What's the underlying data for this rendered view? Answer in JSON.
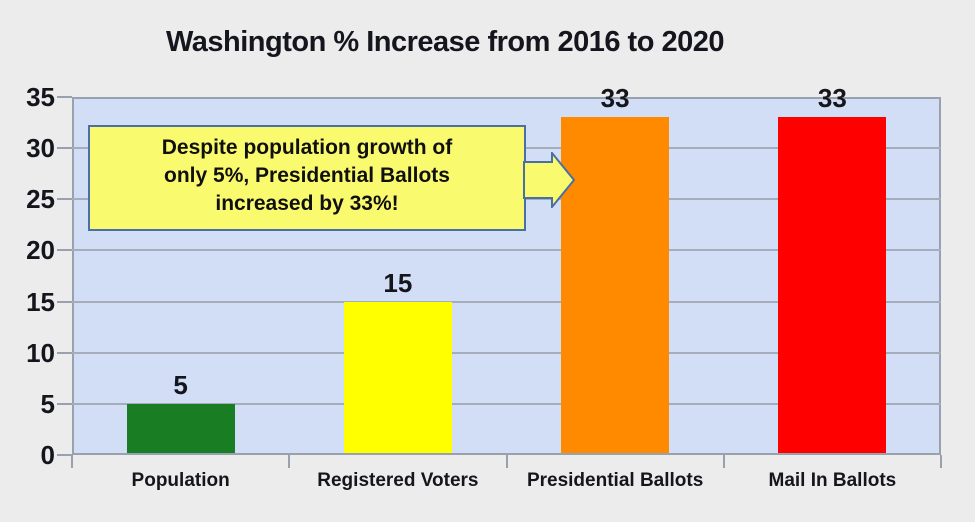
{
  "page": {
    "background": "#ececec"
  },
  "chart_data": {
    "type": "bar",
    "title": "Washington % Increase from 2016 to 2020",
    "categories": [
      "Population",
      "Registered Voters",
      "Presidential Ballots",
      "Mail In Ballots"
    ],
    "values": [
      5,
      15,
      33,
      33
    ],
    "data_labels": [
      "5",
      "15",
      "33",
      "33"
    ],
    "bar_colors": [
      "#187d23",
      "#ffff00",
      "#ff8a00",
      "#fe0000"
    ],
    "ylim": [
      0,
      35
    ],
    "yticks": [
      0,
      5,
      10,
      15,
      20,
      25,
      30,
      35
    ],
    "grid": "horizontal gridlines on",
    "legend": "none",
    "xlabel": "",
    "ylabel": "",
    "plot_background": "#d2def6",
    "grid_color": "#a6adba",
    "axis_color": "#9aa1ae",
    "text_color": "#15151d"
  },
  "annotation": {
    "text": "Despite population growth of only 5%, Presidential Ballots increased by 33%!",
    "lines": [
      "Despite population growth of",
      "only 5%, Presidential Ballots",
      "increased by 33%!"
    ],
    "fill": "#fafa6e",
    "border_color": "#4a6fa5",
    "arrow_icon": "block-arrow-right"
  }
}
